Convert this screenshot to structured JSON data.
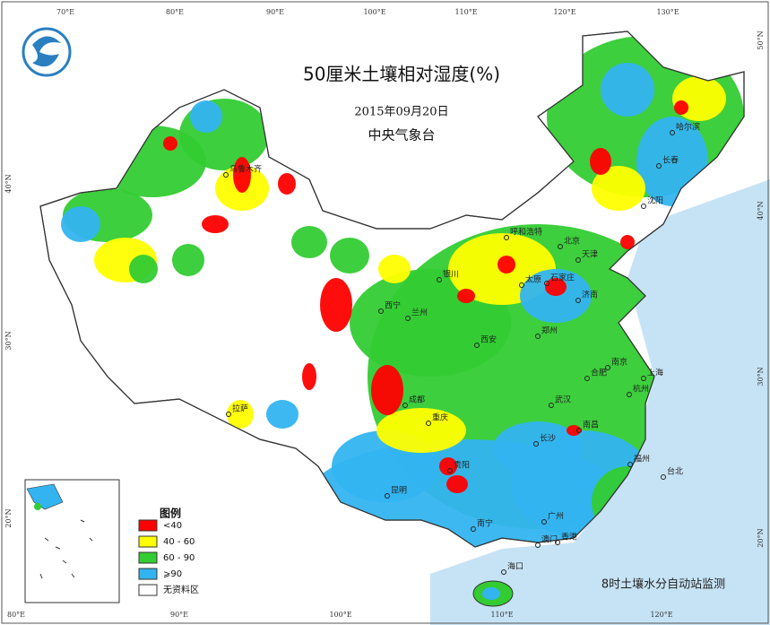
{
  "title": "50厘米土壤相对湿度(%)",
  "date": "2015年09月20日",
  "org": "中央气象台",
  "legend": {
    "title": "图例",
    "items": [
      {
        "label": "<40",
        "color": "#ff0000"
      },
      {
        "label": "40 - 60",
        "color": "#ffff00"
      },
      {
        "label": "60 - 90",
        "color": "#33cc33"
      },
      {
        "label": "⩾90",
        "color": "#33b4f0"
      },
      {
        "label": "无资料区",
        "color": "#ffffff"
      }
    ]
  },
  "footer": "8时土壤水分自动站监测",
  "top_lon": [
    "70°E",
    "80°E",
    "90°E",
    "100°E",
    "110°E",
    "120°E",
    "130°E"
  ],
  "bottom_lon": [
    "80°E",
    "90°E",
    "100°E",
    "110°E",
    "120°E"
  ],
  "left_lat": [
    "40°N",
    "30°N",
    "20°N"
  ],
  "right_lat": [
    "50°N",
    "40°N",
    "30°N",
    "20°N"
  ],
  "cities": [
    "乌鲁木齐",
    "哈尔滨",
    "长春",
    "沈阳",
    "呼和浩特",
    "北京",
    "天津",
    "银川",
    "太原",
    "石家庄",
    "济南",
    "西宁",
    "兰州",
    "郑州",
    "西安",
    "合肥",
    "南京",
    "上海",
    "杭州",
    "拉萨",
    "成都",
    "武汉",
    "重庆",
    "长沙",
    "南昌",
    "贵阳",
    "福州",
    "台北",
    "昆明",
    "南宁",
    "广州",
    "香港",
    "澳门",
    "海口"
  ]
}
